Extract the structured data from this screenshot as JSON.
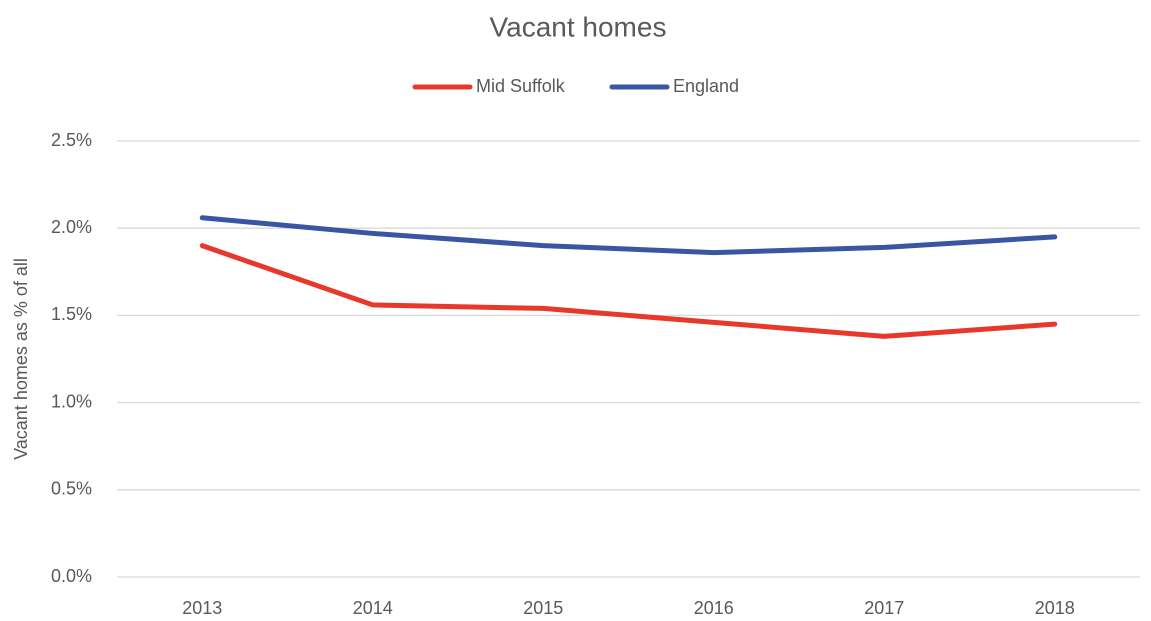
{
  "chart_data": {
    "type": "line",
    "title": "Vacant homes",
    "ylabel": "Vacant homes as % of all",
    "categories": [
      "2013",
      "2014",
      "2015",
      "2016",
      "2017",
      "2018"
    ],
    "series": [
      {
        "name": "Mid Suffolk",
        "color": "#e8382b",
        "values": [
          1.9,
          1.56,
          1.54,
          1.46,
          1.38,
          1.45
        ]
      },
      {
        "name": "England",
        "color": "#3a55a4",
        "values": [
          2.06,
          1.97,
          1.9,
          1.86,
          1.89,
          1.95
        ]
      }
    ],
    "ylim": [
      0,
      2.5
    ],
    "yticks": [
      {
        "value": 0,
        "label": "0.0%"
      },
      {
        "value": 0.5,
        "label": "0.5%"
      },
      {
        "value": 1,
        "label": "1.0%"
      },
      {
        "value": 1.5,
        "label": "1.5%"
      },
      {
        "value": 2,
        "label": "2.0%"
      },
      {
        "value": 2.5,
        "label": "2.5%"
      }
    ],
    "grid": true,
    "legend": "top"
  }
}
